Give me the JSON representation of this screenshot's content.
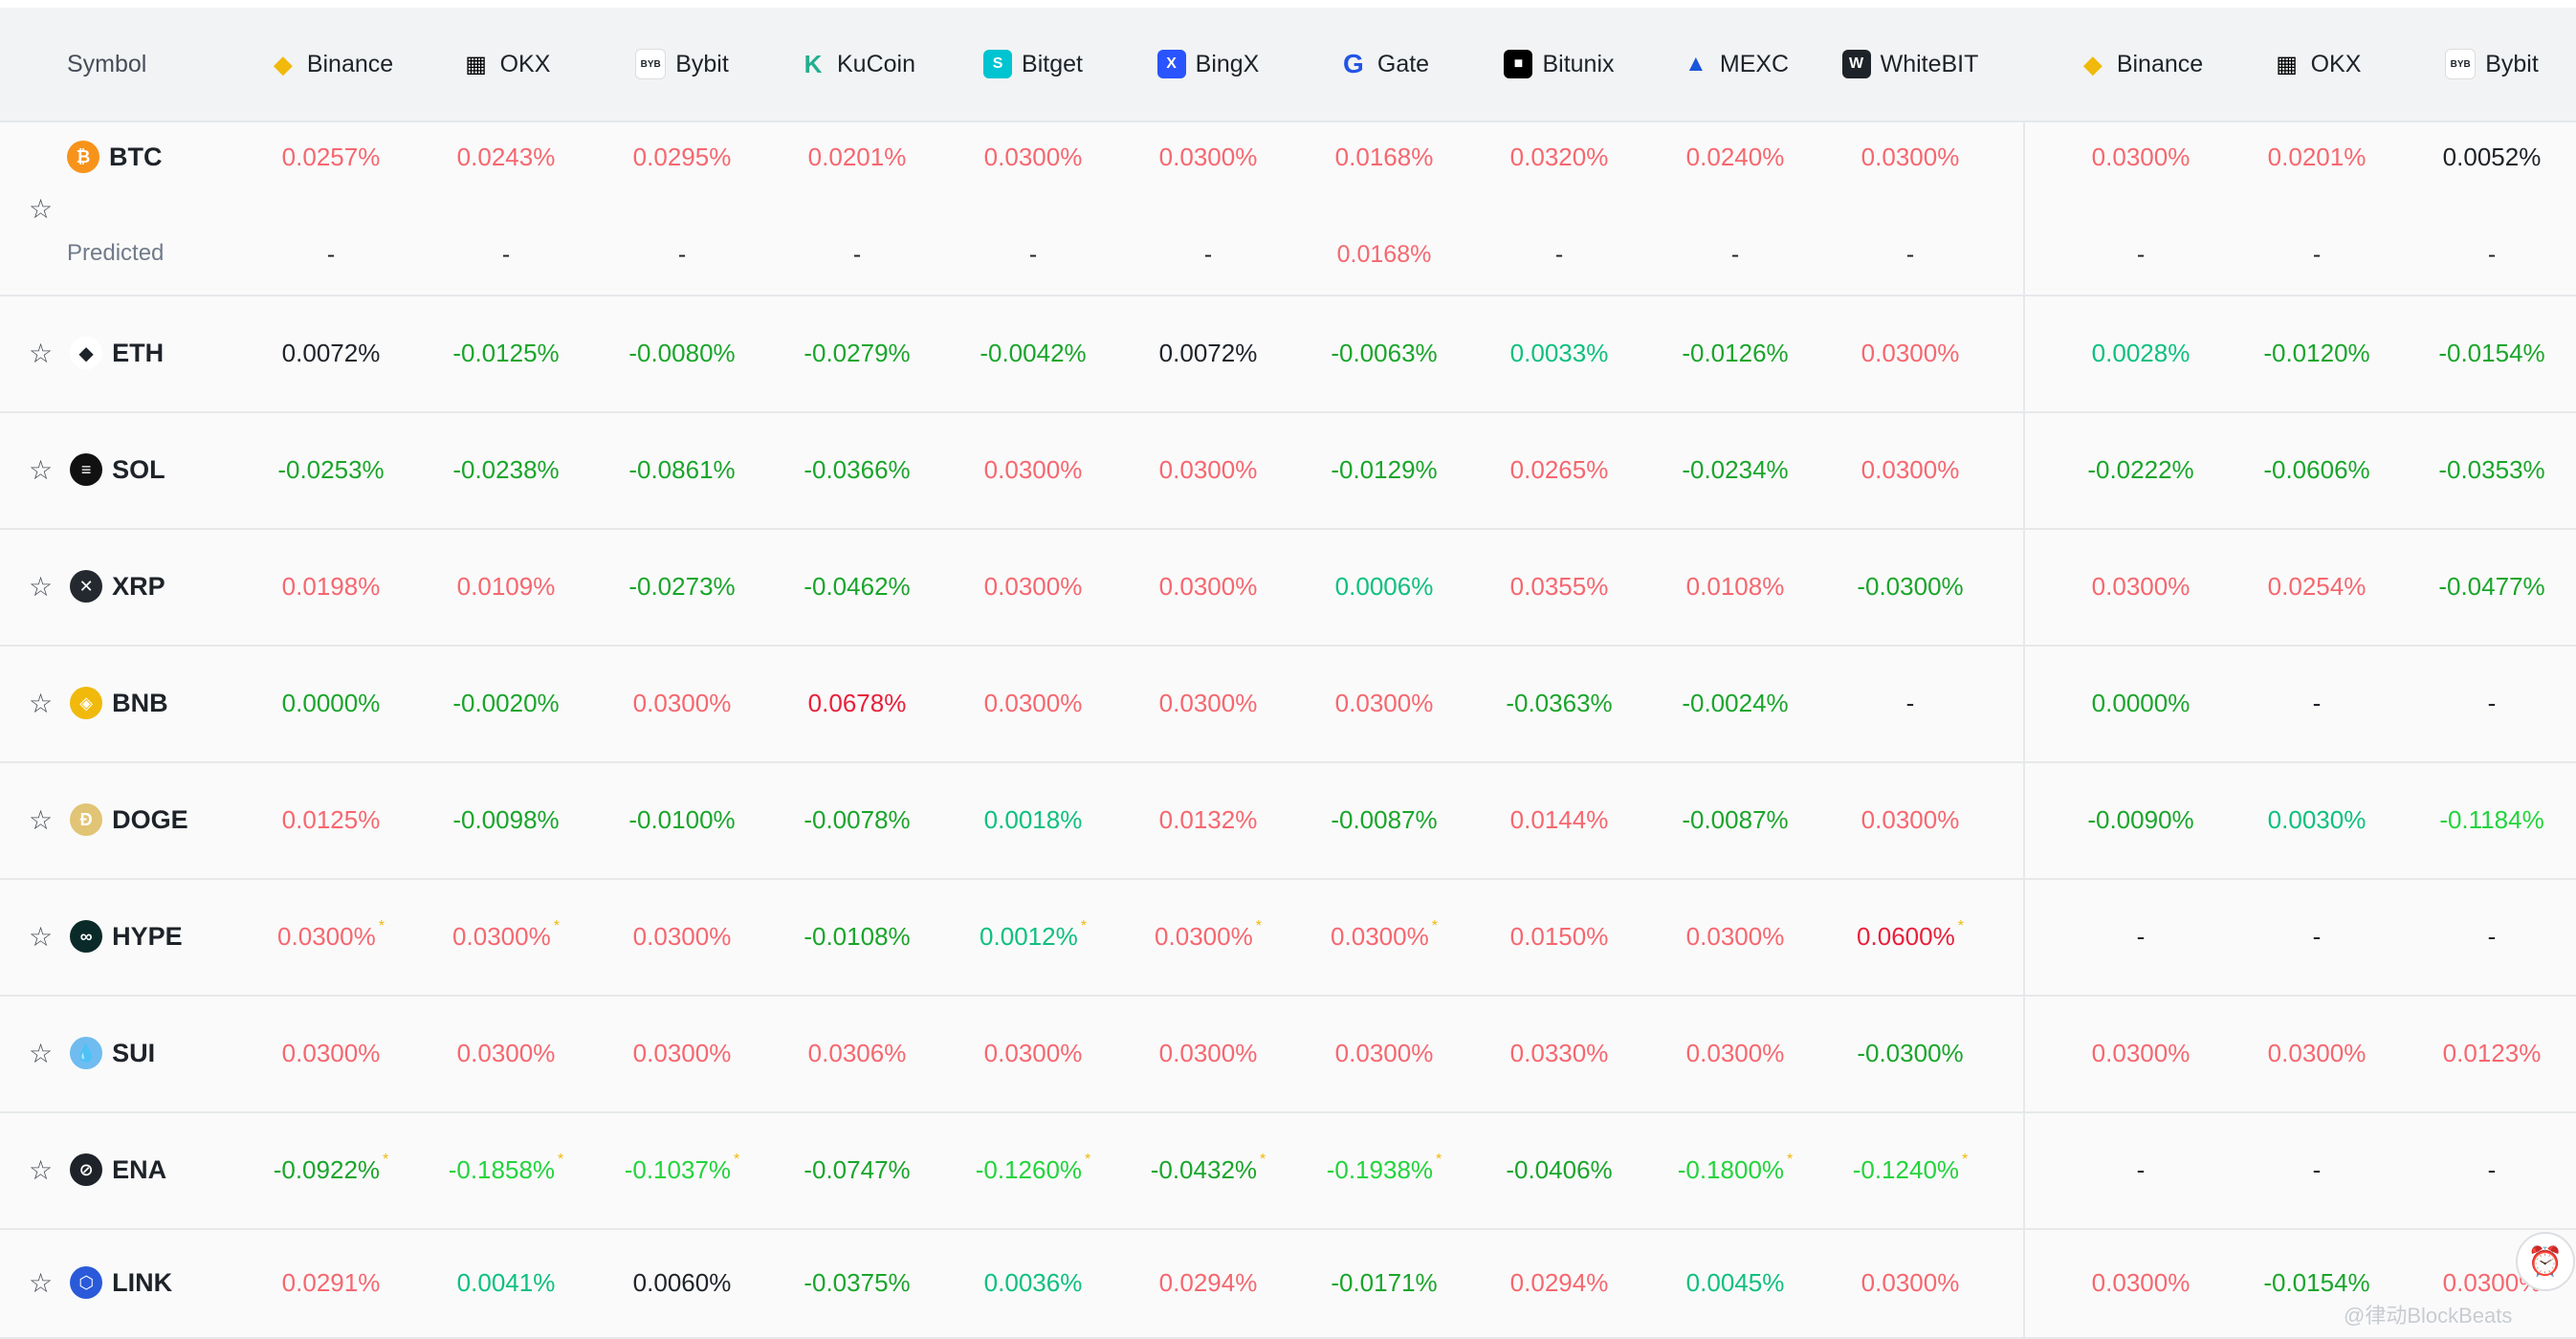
{
  "header": {
    "symbol_label": "Symbol",
    "exchanges": [
      {
        "name": "Binance",
        "icon": "binance-icon",
        "color": "#f0b90b",
        "glyph": "◆"
      },
      {
        "name": "OKX",
        "icon": "okx-icon",
        "color": "#000000",
        "glyph": "▦"
      },
      {
        "name": "Bybit",
        "icon": "bybit-icon",
        "color": "#ffffff",
        "glyph": "BYB"
      },
      {
        "name": "KuCoin",
        "icon": "kucoin-icon",
        "color": "#24ae8f",
        "glyph": "K"
      },
      {
        "name": "Bitget",
        "icon": "bitget-icon",
        "color": "#00c4d1",
        "glyph": "S"
      },
      {
        "name": "BingX",
        "icon": "bingx-icon",
        "color": "#2a54ff",
        "glyph": "X"
      },
      {
        "name": "Gate",
        "icon": "gate-icon",
        "color": "#2354e6",
        "glyph": "G"
      },
      {
        "name": "Bitunix",
        "icon": "bitunix-icon",
        "color": "#000000",
        "glyph": "■"
      },
      {
        "name": "MEXC",
        "icon": "mexc-icon",
        "color": "#1a56db",
        "glyph": "▲"
      },
      {
        "name": "WhiteBIT",
        "icon": "whitebit-icon",
        "color": "#1e2329",
        "glyph": "W"
      },
      {
        "name": "Binance",
        "icon": "binance-icon",
        "color": "#f0b90b",
        "glyph": "◆"
      },
      {
        "name": "OKX",
        "icon": "okx-icon",
        "color": "#000000",
        "glyph": "▦"
      },
      {
        "name": "Bybit",
        "icon": "bybit-icon",
        "color": "#ffffff",
        "glyph": "BYB"
      }
    ]
  },
  "predicted_label": "Predicted",
  "rows": [
    {
      "symbol": "BTC",
      "coin_icon": "btc-icon",
      "coin_color": "#f7931a",
      "coin_glyph": "₿",
      "rates": [
        "0.0257%",
        "0.0243%",
        "0.0295%",
        "0.0201%",
        "0.0300%",
        "0.0300%",
        "0.0168%",
        "0.0320%",
        "0.0240%",
        "0.0300%",
        "0.0300%",
        "0.0201%",
        "0.0052%"
      ],
      "styles": [
        "pos",
        "pos",
        "pos",
        "pos",
        "pos",
        "pos",
        "pos",
        "pos",
        "pos",
        "pos",
        "pos",
        "pos",
        "neu"
      ],
      "predicted": [
        "-",
        "-",
        "-",
        "-",
        "-",
        "-",
        "0.0168%",
        "-",
        "-",
        "-",
        "-",
        "-",
        "-"
      ]
    },
    {
      "symbol": "ETH",
      "coin_icon": "eth-icon",
      "coin_color": "#ffffff",
      "coin_glyph": "◆",
      "rates": [
        "0.0072%",
        "-0.0125%",
        "-0.0080%",
        "-0.0279%",
        "-0.0042%",
        "0.0072%",
        "-0.0063%",
        "0.0033%",
        "-0.0126%",
        "0.0300%",
        "0.0028%",
        "-0.0120%",
        "-0.0154%"
      ],
      "styles": [
        "neu",
        "neg",
        "neg",
        "neg",
        "neg",
        "neu",
        "neg",
        "teal",
        "neg",
        "pos",
        "teal",
        "neg",
        "neg"
      ]
    },
    {
      "symbol": "SOL",
      "coin_icon": "sol-icon",
      "coin_color": "#111111",
      "coin_glyph": "≡",
      "rates": [
        "-0.0253%",
        "-0.0238%",
        "-0.0861%",
        "-0.0366%",
        "0.0300%",
        "0.0300%",
        "-0.0129%",
        "0.0265%",
        "-0.0234%",
        "0.0300%",
        "-0.0222%",
        "-0.0606%",
        "-0.0353%"
      ],
      "styles": [
        "neg",
        "neg",
        "neg",
        "neg",
        "pos",
        "pos",
        "neg",
        "pos",
        "neg",
        "pos",
        "neg",
        "neg",
        "neg"
      ]
    },
    {
      "symbol": "XRP",
      "coin_icon": "xrp-icon",
      "coin_color": "#23292f",
      "coin_glyph": "✕",
      "rates": [
        "0.0198%",
        "0.0109%",
        "-0.0273%",
        "-0.0462%",
        "0.0300%",
        "0.0300%",
        "0.0006%",
        "0.0355%",
        "0.0108%",
        "-0.0300%",
        "0.0300%",
        "0.0254%",
        "-0.0477%"
      ],
      "styles": [
        "pos",
        "pos",
        "neg",
        "neg",
        "pos",
        "pos",
        "teal",
        "pos",
        "pos",
        "neg",
        "pos",
        "pos",
        "neg"
      ]
    },
    {
      "symbol": "BNB",
      "coin_icon": "bnb-icon",
      "coin_color": "#f0b90b",
      "coin_glyph": "◈",
      "rates": [
        "0.0000%",
        "-0.0020%",
        "0.0300%",
        "0.0678%",
        "0.0300%",
        "0.0300%",
        "0.0300%",
        "-0.0363%",
        "-0.0024%",
        "-",
        "0.0000%",
        "-",
        "-"
      ],
      "styles": [
        "neg",
        "neg",
        "pos",
        "red",
        "pos",
        "pos",
        "pos",
        "neg",
        "neg",
        "dash",
        "neg",
        "dash",
        "dash"
      ]
    },
    {
      "symbol": "DOGE",
      "coin_icon": "doge-icon",
      "coin_color": "#e1c475",
      "coin_glyph": "Ð",
      "rates": [
        "0.0125%",
        "-0.0098%",
        "-0.0100%",
        "-0.0078%",
        "0.0018%",
        "0.0132%",
        "-0.0087%",
        "0.0144%",
        "-0.0087%",
        "0.0300%",
        "-0.0090%",
        "0.0030%",
        "-0.1184%"
      ],
      "styles": [
        "pos",
        "neg",
        "neg",
        "neg",
        "teal",
        "pos",
        "neg",
        "pos",
        "neg",
        "pos",
        "neg",
        "teal",
        "bright"
      ]
    },
    {
      "symbol": "HYPE",
      "coin_icon": "hype-icon",
      "coin_color": "#0a2a2a",
      "coin_glyph": "∞",
      "rates": [
        "0.0300%",
        "0.0300%",
        "0.0300%",
        "-0.0108%",
        "0.0012%",
        "0.0300%",
        "0.0300%",
        "0.0150%",
        "0.0300%",
        "0.0600%",
        "-",
        "-",
        "-"
      ],
      "styles": [
        "pos",
        "pos",
        "pos",
        "neg",
        "teal",
        "pos",
        "pos",
        "pos",
        "pos",
        "red",
        "dash",
        "dash",
        "dash"
      ],
      "flags": [
        1,
        1,
        0,
        0,
        1,
        1,
        1,
        0,
        0,
        1,
        0,
        0,
        0
      ]
    },
    {
      "symbol": "SUI",
      "coin_icon": "sui-icon",
      "coin_color": "#6fbcf0",
      "coin_glyph": "💧",
      "rates": [
        "0.0300%",
        "0.0300%",
        "0.0300%",
        "0.0306%",
        "0.0300%",
        "0.0300%",
        "0.0300%",
        "0.0330%",
        "0.0300%",
        "-0.0300%",
        "0.0300%",
        "0.0300%",
        "0.0123%"
      ],
      "styles": [
        "pos",
        "pos",
        "pos",
        "pos",
        "pos",
        "pos",
        "pos",
        "pos",
        "pos",
        "neg",
        "pos",
        "pos",
        "pos"
      ]
    },
    {
      "symbol": "ENA",
      "coin_icon": "ena-icon",
      "coin_color": "#1e2329",
      "coin_glyph": "⊘",
      "rates": [
        "-0.0922%",
        "-0.1858%",
        "-0.1037%",
        "-0.0747%",
        "-0.1260%",
        "-0.0432%",
        "-0.1938%",
        "-0.0406%",
        "-0.1800%",
        "-0.1240%",
        "-",
        "-",
        "-"
      ],
      "styles": [
        "neg",
        "bright",
        "bright",
        "neg",
        "bright",
        "neg",
        "bright",
        "neg",
        "bright",
        "bright",
        "dash",
        "dash",
        "dash"
      ],
      "flags": [
        1,
        1,
        1,
        0,
        1,
        1,
        1,
        0,
        1,
        1,
        0,
        0,
        0
      ]
    },
    {
      "symbol": "LINK",
      "coin_icon": "link-icon",
      "coin_color": "#2a5ada",
      "coin_glyph": "⬡",
      "rates": [
        "0.0291%",
        "0.0041%",
        "0.0060%",
        "-0.0375%",
        "0.0036%",
        "0.0294%",
        "-0.0171%",
        "0.0294%",
        "0.0045%",
        "0.0300%",
        "0.0300%",
        "-0.0154%",
        "0.0300%"
      ],
      "styles": [
        "pos",
        "teal",
        "neu",
        "neg",
        "teal",
        "pos",
        "neg",
        "pos",
        "teal",
        "pos",
        "pos",
        "neg",
        "pos"
      ]
    }
  ],
  "watermark": "@律动BlockBeats",
  "settings_icon": "alarm-settings-icon"
}
